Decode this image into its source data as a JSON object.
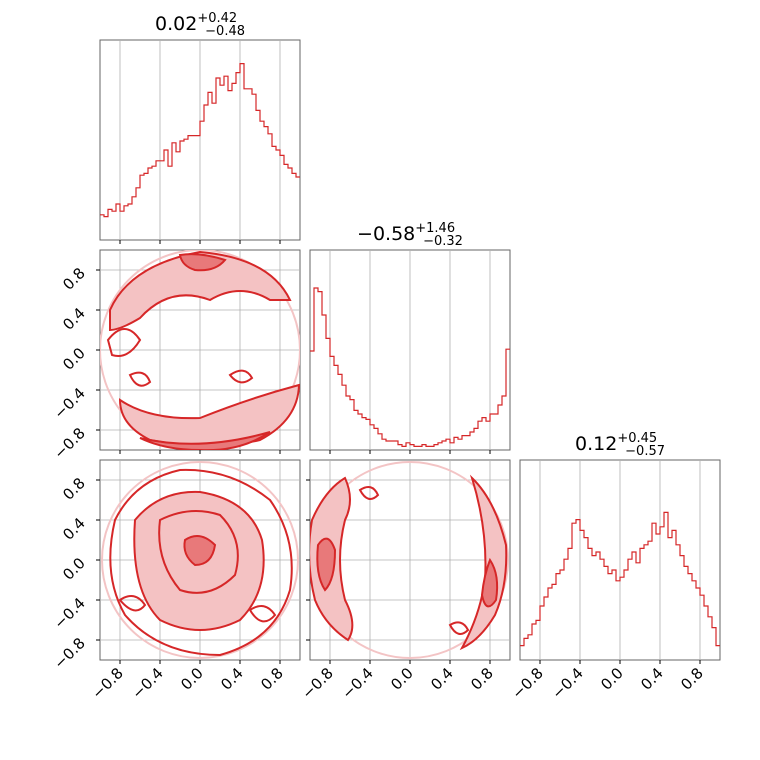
{
  "chart_data": {
    "type": "corner",
    "color": "#d62728",
    "grid": true,
    "dimensions": 3,
    "range": [
      -1,
      1
    ],
    "ticks": [
      -0.8,
      -0.4,
      0.0,
      0.4,
      0.8
    ],
    "tick_labels": [
      "−0.8",
      "−0.4",
      "0.0",
      "0.4",
      "0.8"
    ],
    "titles": [
      {
        "median": "0.02",
        "plus": "+0.42",
        "minus": "−0.48"
      },
      {
        "median": "−0.58",
        "plus": "+1.46",
        "minus": "−0.32"
      },
      {
        "median": "0.12",
        "plus": "+0.45",
        "minus": "−0.57"
      }
    ],
    "histograms": [
      {
        "param": 0,
        "bins": 50,
        "counts": [
          0.14,
          0.13,
          0.17,
          0.16,
          0.2,
          0.16,
          0.19,
          0.2,
          0.24,
          0.29,
          0.36,
          0.37,
          0.4,
          0.41,
          0.44,
          0.44,
          0.5,
          0.41,
          0.54,
          0.49,
          0.55,
          0.56,
          0.58,
          0.58,
          0.58,
          0.66,
          0.75,
          0.82,
          0.76,
          0.9,
          0.86,
          0.91,
          0.83,
          0.87,
          0.93,
          0.98,
          0.84,
          0.84,
          0.81,
          0.72,
          0.66,
          0.63,
          0.59,
          0.52,
          0.5,
          0.47,
          0.42,
          0.4,
          0.37,
          0.35
        ]
      },
      {
        "param": 1,
        "bins": 50,
        "counts": [
          0.55,
          0.9,
          0.88,
          0.75,
          0.62,
          0.52,
          0.47,
          0.42,
          0.36,
          0.3,
          0.28,
          0.22,
          0.2,
          0.18,
          0.17,
          0.14,
          0.12,
          0.09,
          0.06,
          0.05,
          0.05,
          0.05,
          0.03,
          0.02,
          0.04,
          0.03,
          0.02,
          0.02,
          0.03,
          0.02,
          0.02,
          0.03,
          0.04,
          0.05,
          0.06,
          0.04,
          0.07,
          0.06,
          0.08,
          0.08,
          0.1,
          0.12,
          0.16,
          0.18,
          0.16,
          0.2,
          0.2,
          0.25,
          0.3,
          0.56
        ]
      },
      {
        "param": 2,
        "bins": 50,
        "counts": [
          0.08,
          0.12,
          0.14,
          0.2,
          0.22,
          0.3,
          0.35,
          0.4,
          0.42,
          0.48,
          0.5,
          0.56,
          0.62,
          0.76,
          0.78,
          0.72,
          0.68,
          0.62,
          0.58,
          0.6,
          0.56,
          0.52,
          0.48,
          0.5,
          0.44,
          0.46,
          0.5,
          0.56,
          0.6,
          0.54,
          0.62,
          0.64,
          0.66,
          0.76,
          0.7,
          0.74,
          0.82,
          0.68,
          0.72,
          0.64,
          0.58,
          0.52,
          0.48,
          0.44,
          0.4,
          0.36,
          0.3,
          0.24,
          0.18,
          0.08
        ]
      }
    ],
    "pairs": [
      {
        "x_param": 0,
        "y_param": 1,
        "kind": "filled-contour+scatter",
        "description": "mass on a unit circle boundary, concentrated near y = ±0.9"
      },
      {
        "x_param": 0,
        "y_param": 2,
        "kind": "filled-contour+scatter",
        "description": "broad mass filling the disk"
      },
      {
        "x_param": 1,
        "y_param": 2,
        "kind": "filled-contour+scatter",
        "description": "mass on the circle boundary near x = ±0.9"
      }
    ]
  }
}
